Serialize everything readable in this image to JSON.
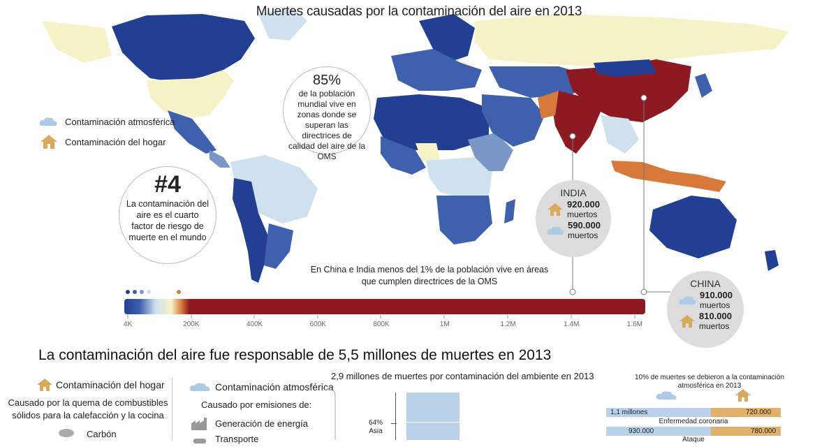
{
  "title": "Muertes causadas por la contaminación del aire en 2013",
  "legend": {
    "atmospheric": "Contaminación atmosférica",
    "household": "Contaminación del hogar"
  },
  "callout_85": {
    "value": "85%",
    "text": "de la población mundial vive en zonas donde se superan las directrices de calidad del aire de la OMS"
  },
  "callout_4": {
    "value": "#4",
    "text": "La contaminación del aire es el cuarto factor de riesgo de muerte en el mundo"
  },
  "india": {
    "name": "INDIA",
    "household_value": "920.000",
    "household_unit": "muertos",
    "atmospheric_value": "590.000",
    "atmospheric_unit": "muertos"
  },
  "china": {
    "name": "CHINA",
    "atmospheric_value": "910.000",
    "atmospheric_unit": "muertos",
    "household_value": "810.000",
    "household_unit": "muertos"
  },
  "note": "En China e India menos del 1% de la población vive en áreas que cumplen directrices de la OMS",
  "scale": {
    "ticks": [
      "4K",
      "200K",
      "400K",
      "600K",
      "800K",
      "1M",
      "1.2M",
      "1.4M",
      "1.6M"
    ]
  },
  "colors": {
    "deep_blue": "#233f93",
    "mid_blue": "#3e60ad",
    "light_blue": "#7b97c8",
    "pale_blue": "#cfe0ef",
    "pale_yellow": "#f7f1c8",
    "orange": "#d7793a",
    "dark_red": "#8d1a22",
    "icon_gold": "#d9a95c",
    "cloud_blue": "#aecae4"
  },
  "bottom": {
    "headline": "La contaminación del aire fue responsable de 5,5 millones de muertes en 2013",
    "household_title": "Contaminación del hogar",
    "household_desc": "Causado por la quema de combustibles sólidos para la calefacción y la cocina",
    "household_item_1": "Carbón",
    "atmospheric_title": "Contaminación atmosférica",
    "atmospheric_desc": "Causado por emisiones de:",
    "atmospheric_item_1": "Generación de energía",
    "atmospheric_item_2": "Transporte",
    "ambient_title": "2,9 millones de muertes por contaminación del ambiente en 2013",
    "ambient_pct": "64%",
    "ambient_region": "Asia",
    "right_title": "10% de muertes se debieron a la contaminación atmosférica en 2013",
    "row1_left": "1,1 millones",
    "row1_right": "720.000",
    "row1_caption": "Enfermedad coronaria",
    "row2_left": "930.000",
    "row2_right": "780.000",
    "row2_caption": "Ataque"
  }
}
